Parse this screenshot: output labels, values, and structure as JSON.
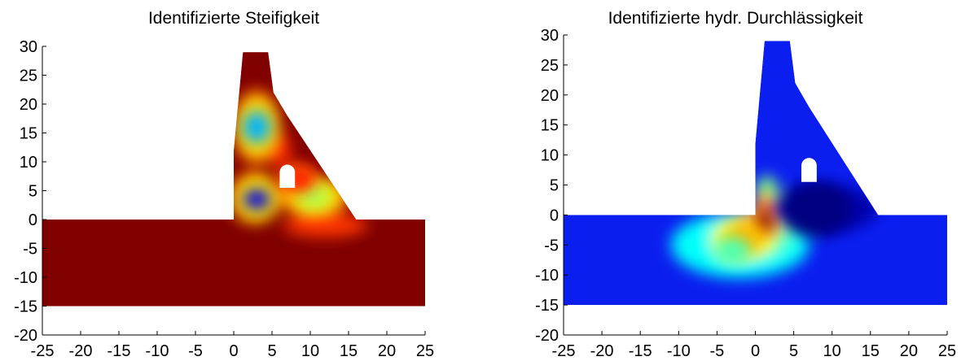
{
  "chart_data": [
    {
      "type": "heatmap",
      "title": "Identifizierte Steifigkeit",
      "xlabel": "",
      "ylabel": "",
      "xlim": [
        -25,
        25
      ],
      "ylim": [
        -20,
        30
      ],
      "x_ticks": [
        -25,
        -20,
        -15,
        -10,
        -5,
        0,
        5,
        10,
        15,
        20,
        25
      ],
      "y_ticks": [
        -20,
        -15,
        -10,
        -5,
        0,
        5,
        10,
        15,
        20,
        25,
        30
      ],
      "grid": false,
      "colormap": "jet",
      "background_color": "#800000",
      "foundation": {
        "x": [
          -25,
          25
        ],
        "y": [
          -15,
          0
        ]
      },
      "dam_outline": [
        [
          0,
          0
        ],
        [
          0,
          12
        ],
        [
          1.2,
          29
        ],
        [
          4.5,
          29
        ],
        [
          5.2,
          22
        ],
        [
          7,
          18
        ],
        [
          16,
          0
        ]
      ],
      "gallery_opening": {
        "x": [
          6,
          8
        ],
        "y": [
          5.5,
          9.5
        ]
      },
      "field_features": [
        {
          "x": 3,
          "y": 16,
          "level": 0.3,
          "label": "blue spot"
        },
        {
          "x": 3,
          "y": 3.5,
          "level": 0.1,
          "label": "dark blue spot"
        },
        {
          "x": 10.5,
          "y": 4,
          "level": 0.55,
          "label": "cyan-green region"
        },
        {
          "x": 8.5,
          "y": 7,
          "level": 0.85,
          "label": "yellow-orange region"
        }
      ]
    },
    {
      "type": "heatmap",
      "title": "Identifizierte hydr. Durchlässigkeit",
      "xlabel": "",
      "ylabel": "",
      "xlim": [
        -25,
        25
      ],
      "ylim": [
        -20,
        30
      ],
      "x_ticks": [
        -25,
        -20,
        -15,
        -10,
        -5,
        0,
        5,
        10,
        15,
        20,
        25
      ],
      "y_ticks": [
        -20,
        -15,
        -10,
        -5,
        0,
        5,
        10,
        15,
        20,
        25,
        30
      ],
      "grid": false,
      "colormap": "jet",
      "background_color": "#0a1ef0",
      "foundation": {
        "x": [
          -25,
          25
        ],
        "y": [
          -15,
          0
        ]
      },
      "dam_outline": [
        [
          0,
          0
        ],
        [
          0,
          12
        ],
        [
          1.2,
          29
        ],
        [
          4.5,
          29
        ],
        [
          5.2,
          22
        ],
        [
          7,
          18
        ],
        [
          16,
          0
        ]
      ],
      "gallery_opening": {
        "x": [
          6,
          8
        ],
        "y": [
          5.5,
          9.5
        ]
      },
      "field_features": [
        {
          "x": 1.3,
          "y": -1,
          "level": 1.0,
          "label": "dark red core"
        },
        {
          "x": -1.5,
          "y": -4,
          "level": 0.7,
          "label": "orange-yellow region"
        },
        {
          "x": -3,
          "y": -6,
          "level": 0.45,
          "label": "cyan region"
        },
        {
          "x": 8,
          "y": 1,
          "level": 0.0,
          "label": "dark blue region"
        }
      ]
    }
  ]
}
